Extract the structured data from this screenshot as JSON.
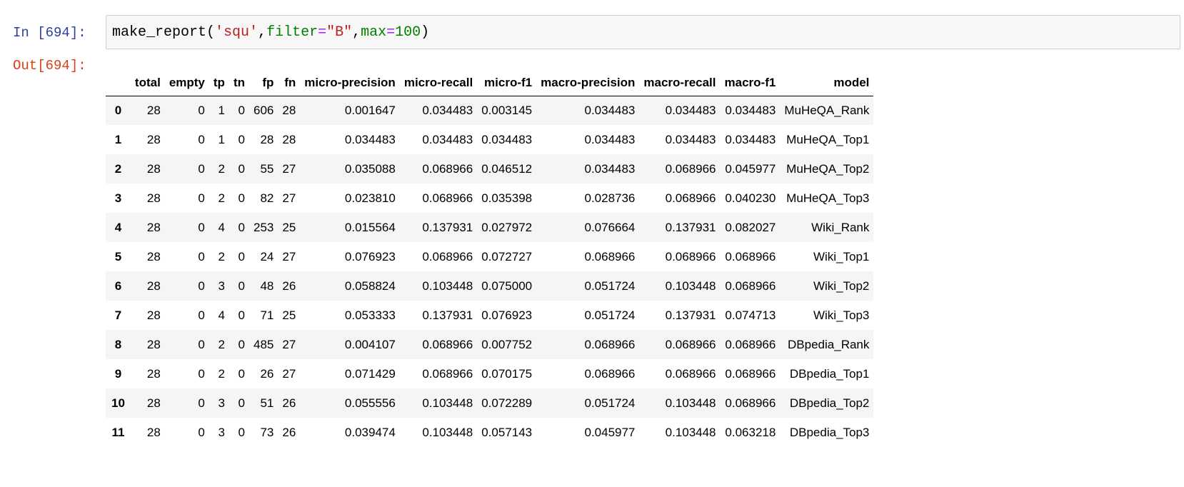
{
  "input_cell": {
    "prompt": "In [694]:",
    "code": {
      "fn": "make_report(",
      "arg1": "'squ'",
      "comma1": ",",
      "kw1": "filter",
      "eq1": "=",
      "val1": "\"B\"",
      "comma2": ",",
      "kw2": "max",
      "eq2": "=",
      "val2": "100",
      "close": ")"
    }
  },
  "output_cell": {
    "prompt": "Out[694]:"
  },
  "table": {
    "columns": [
      "",
      "total",
      "empty",
      "tp",
      "tn",
      "fp",
      "fn",
      "micro-precision",
      "micro-recall",
      "micro-f1",
      "macro-precision",
      "macro-recall",
      "macro-f1",
      "model"
    ],
    "rows": [
      [
        "0",
        "28",
        "0",
        "1",
        "0",
        "606",
        "28",
        "0.001647",
        "0.034483",
        "0.003145",
        "0.034483",
        "0.034483",
        "0.034483",
        "MuHeQA_Rank"
      ],
      [
        "1",
        "28",
        "0",
        "1",
        "0",
        "28",
        "28",
        "0.034483",
        "0.034483",
        "0.034483",
        "0.034483",
        "0.034483",
        "0.034483",
        "MuHeQA_Top1"
      ],
      [
        "2",
        "28",
        "0",
        "2",
        "0",
        "55",
        "27",
        "0.035088",
        "0.068966",
        "0.046512",
        "0.034483",
        "0.068966",
        "0.045977",
        "MuHeQA_Top2"
      ],
      [
        "3",
        "28",
        "0",
        "2",
        "0",
        "82",
        "27",
        "0.023810",
        "0.068966",
        "0.035398",
        "0.028736",
        "0.068966",
        "0.040230",
        "MuHeQA_Top3"
      ],
      [
        "4",
        "28",
        "0",
        "4",
        "0",
        "253",
        "25",
        "0.015564",
        "0.137931",
        "0.027972",
        "0.076664",
        "0.137931",
        "0.082027",
        "Wiki_Rank"
      ],
      [
        "5",
        "28",
        "0",
        "2",
        "0",
        "24",
        "27",
        "0.076923",
        "0.068966",
        "0.072727",
        "0.068966",
        "0.068966",
        "0.068966",
        "Wiki_Top1"
      ],
      [
        "6",
        "28",
        "0",
        "3",
        "0",
        "48",
        "26",
        "0.058824",
        "0.103448",
        "0.075000",
        "0.051724",
        "0.103448",
        "0.068966",
        "Wiki_Top2"
      ],
      [
        "7",
        "28",
        "0",
        "4",
        "0",
        "71",
        "25",
        "0.053333",
        "0.137931",
        "0.076923",
        "0.051724",
        "0.137931",
        "0.074713",
        "Wiki_Top3"
      ],
      [
        "8",
        "28",
        "0",
        "2",
        "0",
        "485",
        "27",
        "0.004107",
        "0.068966",
        "0.007752",
        "0.068966",
        "0.068966",
        "0.068966",
        "DBpedia_Rank"
      ],
      [
        "9",
        "28",
        "0",
        "2",
        "0",
        "26",
        "27",
        "0.071429",
        "0.068966",
        "0.070175",
        "0.068966",
        "0.068966",
        "0.068966",
        "DBpedia_Top1"
      ],
      [
        "10",
        "28",
        "0",
        "3",
        "0",
        "51",
        "26",
        "0.055556",
        "0.103448",
        "0.072289",
        "0.051724",
        "0.103448",
        "0.068966",
        "DBpedia_Top2"
      ],
      [
        "11",
        "28",
        "0",
        "3",
        "0",
        "73",
        "26",
        "0.039474",
        "0.103448",
        "0.057143",
        "0.045977",
        "0.103448",
        "0.063218",
        "DBpedia_Top3"
      ]
    ]
  },
  "colors": {
    "in_prompt": "#303f9f",
    "out_prompt": "#d84315",
    "string": "#ba2121",
    "keyword": "#008000",
    "operator": "#aa22ff",
    "row_stripe": "#f5f5f5"
  }
}
